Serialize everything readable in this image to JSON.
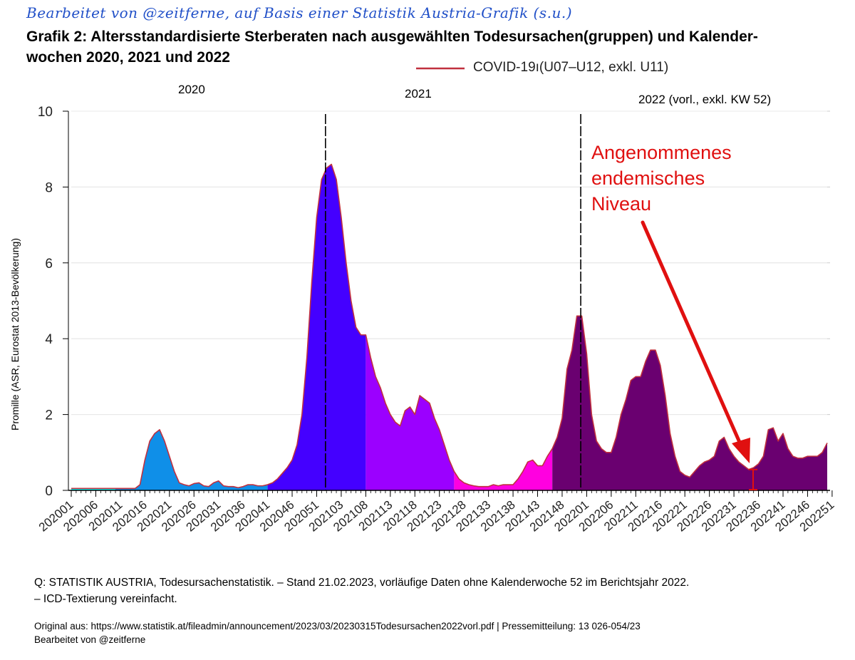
{
  "header": {
    "edited_note": "Bearbeitet von @zeitferne, auf Basis einer Statistik Austria-Grafik (s.u.)",
    "title_line1": "Grafik 2: Altersstandardisierte Sterberaten nach ausgewählten Todesursachen(gruppen) und Kalender-",
    "title_line2": "wochen 2020, 2021 und 2022"
  },
  "legend": {
    "label": "COVID-19ı(U07–U12, exkl. U11)",
    "line_color": "#c0303e"
  },
  "year_labels": [
    "2020",
    "2021",
    "2022 (vorl., exkl. KW 52)"
  ],
  "annotation": {
    "line1": "Angenommenes",
    "line2": "endemisches",
    "line3": "Niveau",
    "color": "#e01010",
    "level": 0.55
  },
  "footer": {
    "source_line1": "Q: STATISTIK AUSTRIA, Todesursachenstatistik. – Stand 21.02.2023, vorläufige Daten ohne Kalenderwoche 52 im Berichtsjahr 2022.",
    "source_line2": "– ICD-Textierung vereinfacht.",
    "original_line": "Original aus: https://www.statistik.at/fileadmin/announcement/2023/03/20230315Todesursachen2022vorl.pdf | Pressemitteilung: 13 026-054/23",
    "edited_line": "Bearbeitet von @zeitferne"
  },
  "chart_data": {
    "type": "area",
    "ylabel": "Promille (ASR, Eurostat 2013-Bevölkerung)",
    "ylim": [
      0,
      10
    ],
    "yticks": [
      0,
      2,
      4,
      6,
      8,
      10
    ],
    "grid": true,
    "x_tick_labels": [
      "202001",
      "202006",
      "202011",
      "202016",
      "202021",
      "202026",
      "202031",
      "202036",
      "202041",
      "202046",
      "202051",
      "202103",
      "202108",
      "202113",
      "202118",
      "202123",
      "202128",
      "202133",
      "202138",
      "202143",
      "202148",
      "202201",
      "202206",
      "202211",
      "202216",
      "202221",
      "202226",
      "202231",
      "202236",
      "202241",
      "202246",
      "202251"
    ],
    "year_boundaries_after_index": [
      52,
      104
    ],
    "segment_colors": [
      "#00ffff",
      "#0f8fe8",
      "#4400ff",
      "#9b00ff",
      "#ff00e0",
      "#6a0070"
    ],
    "segment_breaks": [
      9,
      40,
      60,
      78,
      98
    ],
    "outline_color": "#c0303e",
    "values": [
      0.05,
      0.05,
      0.05,
      0.05,
      0.05,
      0.05,
      0.05,
      0.05,
      0.05,
      0.05,
      0.05,
      0.05,
      0.05,
      0.05,
      0.15,
      0.8,
      1.3,
      1.5,
      1.6,
      1.3,
      0.9,
      0.5,
      0.2,
      0.15,
      0.12,
      0.18,
      0.2,
      0.12,
      0.1,
      0.2,
      0.25,
      0.12,
      0.1,
      0.1,
      0.07,
      0.1,
      0.15,
      0.15,
      0.12,
      0.12,
      0.15,
      0.2,
      0.3,
      0.45,
      0.6,
      0.8,
      1.2,
      2.0,
      3.5,
      5.5,
      7.2,
      8.2,
      8.5,
      8.6,
      8.2,
      7.2,
      6.0,
      5.0,
      4.3,
      4.1,
      4.1,
      3.5,
      3.0,
      2.7,
      2.3,
      2.0,
      1.8,
      1.7,
      2.1,
      2.2,
      2.0,
      2.5,
      2.4,
      2.3,
      1.9,
      1.6,
      1.2,
      0.8,
      0.5,
      0.3,
      0.2,
      0.15,
      0.12,
      0.1,
      0.1,
      0.1,
      0.15,
      0.12,
      0.15,
      0.15,
      0.15,
      0.3,
      0.5,
      0.75,
      0.8,
      0.65,
      0.65,
      0.9,
      1.1,
      1.4,
      1.9,
      3.2,
      3.7,
      4.6,
      4.6,
      3.6,
      2.0,
      1.3,
      1.1,
      1.0,
      1.0,
      1.4,
      2.0,
      2.4,
      2.9,
      3.0,
      3.0,
      3.4,
      3.7,
      3.7,
      3.3,
      2.5,
      1.5,
      0.9,
      0.5,
      0.4,
      0.35,
      0.5,
      0.65,
      0.75,
      0.8,
      0.9,
      1.3,
      1.4,
      1.1,
      0.9,
      0.75,
      0.65,
      0.55,
      0.6,
      0.7,
      0.9,
      1.6,
      1.65,
      1.3,
      1.5,
      1.1,
      0.9,
      0.85,
      0.85,
      0.9,
      0.9,
      0.9,
      1.0,
      1.25
    ]
  }
}
